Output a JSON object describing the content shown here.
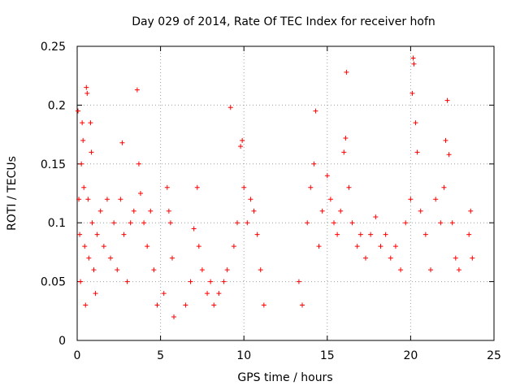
{
  "chart_data": {
    "type": "scatter",
    "title": "Day 029 of 2014, Rate Of TEC Index for receiver hofn",
    "xlabel": "GPS time / hours",
    "ylabel": "ROTI / TECUs",
    "xlim": [
      0,
      25
    ],
    "ylim": [
      0,
      0.25
    ],
    "xticks": [
      0,
      5,
      10,
      15,
      20,
      25
    ],
    "yticks": [
      0,
      0.05,
      0.1,
      0.15,
      0.2,
      0.25
    ],
    "xtick_labels": [
      "0",
      "5",
      "10",
      "15",
      "20",
      "25"
    ],
    "ytick_labels": [
      "0",
      "0.05",
      "0.1",
      "0.15",
      "0.2",
      "0.25"
    ],
    "grid": true,
    "marker": "+",
    "series": [
      {
        "name": "ROTI",
        "color": "#ff0000",
        "points": [
          [
            0.05,
            0.195
          ],
          [
            0.1,
            0.12
          ],
          [
            0.15,
            0.09
          ],
          [
            0.2,
            0.05
          ],
          [
            0.25,
            0.15
          ],
          [
            0.3,
            0.185
          ],
          [
            0.35,
            0.17
          ],
          [
            0.4,
            0.13
          ],
          [
            0.45,
            0.08
          ],
          [
            0.5,
            0.03
          ],
          [
            0.55,
            0.215
          ],
          [
            0.6,
            0.21
          ],
          [
            0.65,
            0.12
          ],
          [
            0.7,
            0.07
          ],
          [
            0.8,
            0.185
          ],
          [
            0.85,
            0.16
          ],
          [
            0.9,
            0.1
          ],
          [
            1.0,
            0.06
          ],
          [
            1.1,
            0.04
          ],
          [
            1.2,
            0.09
          ],
          [
            1.4,
            0.11
          ],
          [
            1.6,
            0.08
          ],
          [
            1.8,
            0.12
          ],
          [
            2.0,
            0.07
          ],
          [
            2.2,
            0.1
          ],
          [
            2.4,
            0.06
          ],
          [
            2.6,
            0.12
          ],
          [
            2.7,
            0.168
          ],
          [
            2.8,
            0.09
          ],
          [
            3.0,
            0.05
          ],
          [
            3.2,
            0.1
          ],
          [
            3.4,
            0.11
          ],
          [
            3.6,
            0.213
          ],
          [
            3.7,
            0.15
          ],
          [
            3.8,
            0.125
          ],
          [
            4.0,
            0.1
          ],
          [
            4.2,
            0.08
          ],
          [
            4.4,
            0.11
          ],
          [
            4.6,
            0.06
          ],
          [
            4.8,
            0.03
          ],
          [
            5.2,
            0.04
          ],
          [
            5.4,
            0.13
          ],
          [
            5.5,
            0.11
          ],
          [
            5.6,
            0.1
          ],
          [
            5.7,
            0.07
          ],
          [
            5.8,
            0.02
          ],
          [
            6.5,
            0.03
          ],
          [
            6.8,
            0.05
          ],
          [
            7.0,
            0.095
          ],
          [
            7.2,
            0.13
          ],
          [
            7.3,
            0.08
          ],
          [
            7.5,
            0.06
          ],
          [
            7.8,
            0.04
          ],
          [
            8.0,
            0.05
          ],
          [
            8.2,
            0.03
          ],
          [
            8.5,
            0.04
          ],
          [
            8.8,
            0.05
          ],
          [
            9.0,
            0.06
          ],
          [
            9.2,
            0.198
          ],
          [
            9.4,
            0.08
          ],
          [
            9.6,
            0.1
          ],
          [
            9.8,
            0.165
          ],
          [
            9.9,
            0.17
          ],
          [
            10.0,
            0.13
          ],
          [
            10.2,
            0.1
          ],
          [
            10.4,
            0.12
          ],
          [
            10.6,
            0.11
          ],
          [
            10.8,
            0.09
          ],
          [
            11.0,
            0.06
          ],
          [
            11.2,
            0.03
          ],
          [
            13.3,
            0.05
          ],
          [
            13.5,
            0.03
          ],
          [
            13.8,
            0.1
          ],
          [
            14.0,
            0.13
          ],
          [
            14.2,
            0.15
          ],
          [
            14.3,
            0.195
          ],
          [
            14.5,
            0.08
          ],
          [
            14.7,
            0.11
          ],
          [
            15.0,
            0.14
          ],
          [
            15.2,
            0.12
          ],
          [
            15.4,
            0.1
          ],
          [
            15.6,
            0.09
          ],
          [
            15.8,
            0.11
          ],
          [
            16.0,
            0.16
          ],
          [
            16.1,
            0.172
          ],
          [
            16.15,
            0.228
          ],
          [
            16.3,
            0.13
          ],
          [
            16.5,
            0.1
          ],
          [
            16.8,
            0.08
          ],
          [
            17.0,
            0.09
          ],
          [
            17.3,
            0.07
          ],
          [
            17.6,
            0.09
          ],
          [
            17.9,
            0.105
          ],
          [
            18.2,
            0.08
          ],
          [
            18.5,
            0.09
          ],
          [
            18.8,
            0.07
          ],
          [
            19.1,
            0.08
          ],
          [
            19.4,
            0.06
          ],
          [
            19.7,
            0.1
          ],
          [
            20.0,
            0.12
          ],
          [
            20.1,
            0.21
          ],
          [
            20.15,
            0.24
          ],
          [
            20.2,
            0.235
          ],
          [
            20.3,
            0.185
          ],
          [
            20.4,
            0.16
          ],
          [
            20.6,
            0.11
          ],
          [
            20.9,
            0.09
          ],
          [
            21.2,
            0.06
          ],
          [
            21.5,
            0.12
          ],
          [
            21.8,
            0.1
          ],
          [
            22.0,
            0.13
          ],
          [
            22.1,
            0.17
          ],
          [
            22.2,
            0.204
          ],
          [
            22.3,
            0.158
          ],
          [
            22.5,
            0.1
          ],
          [
            22.7,
            0.07
          ],
          [
            22.9,
            0.06
          ],
          [
            23.5,
            0.09
          ],
          [
            23.6,
            0.11
          ],
          [
            23.7,
            0.07
          ]
        ]
      }
    ]
  }
}
